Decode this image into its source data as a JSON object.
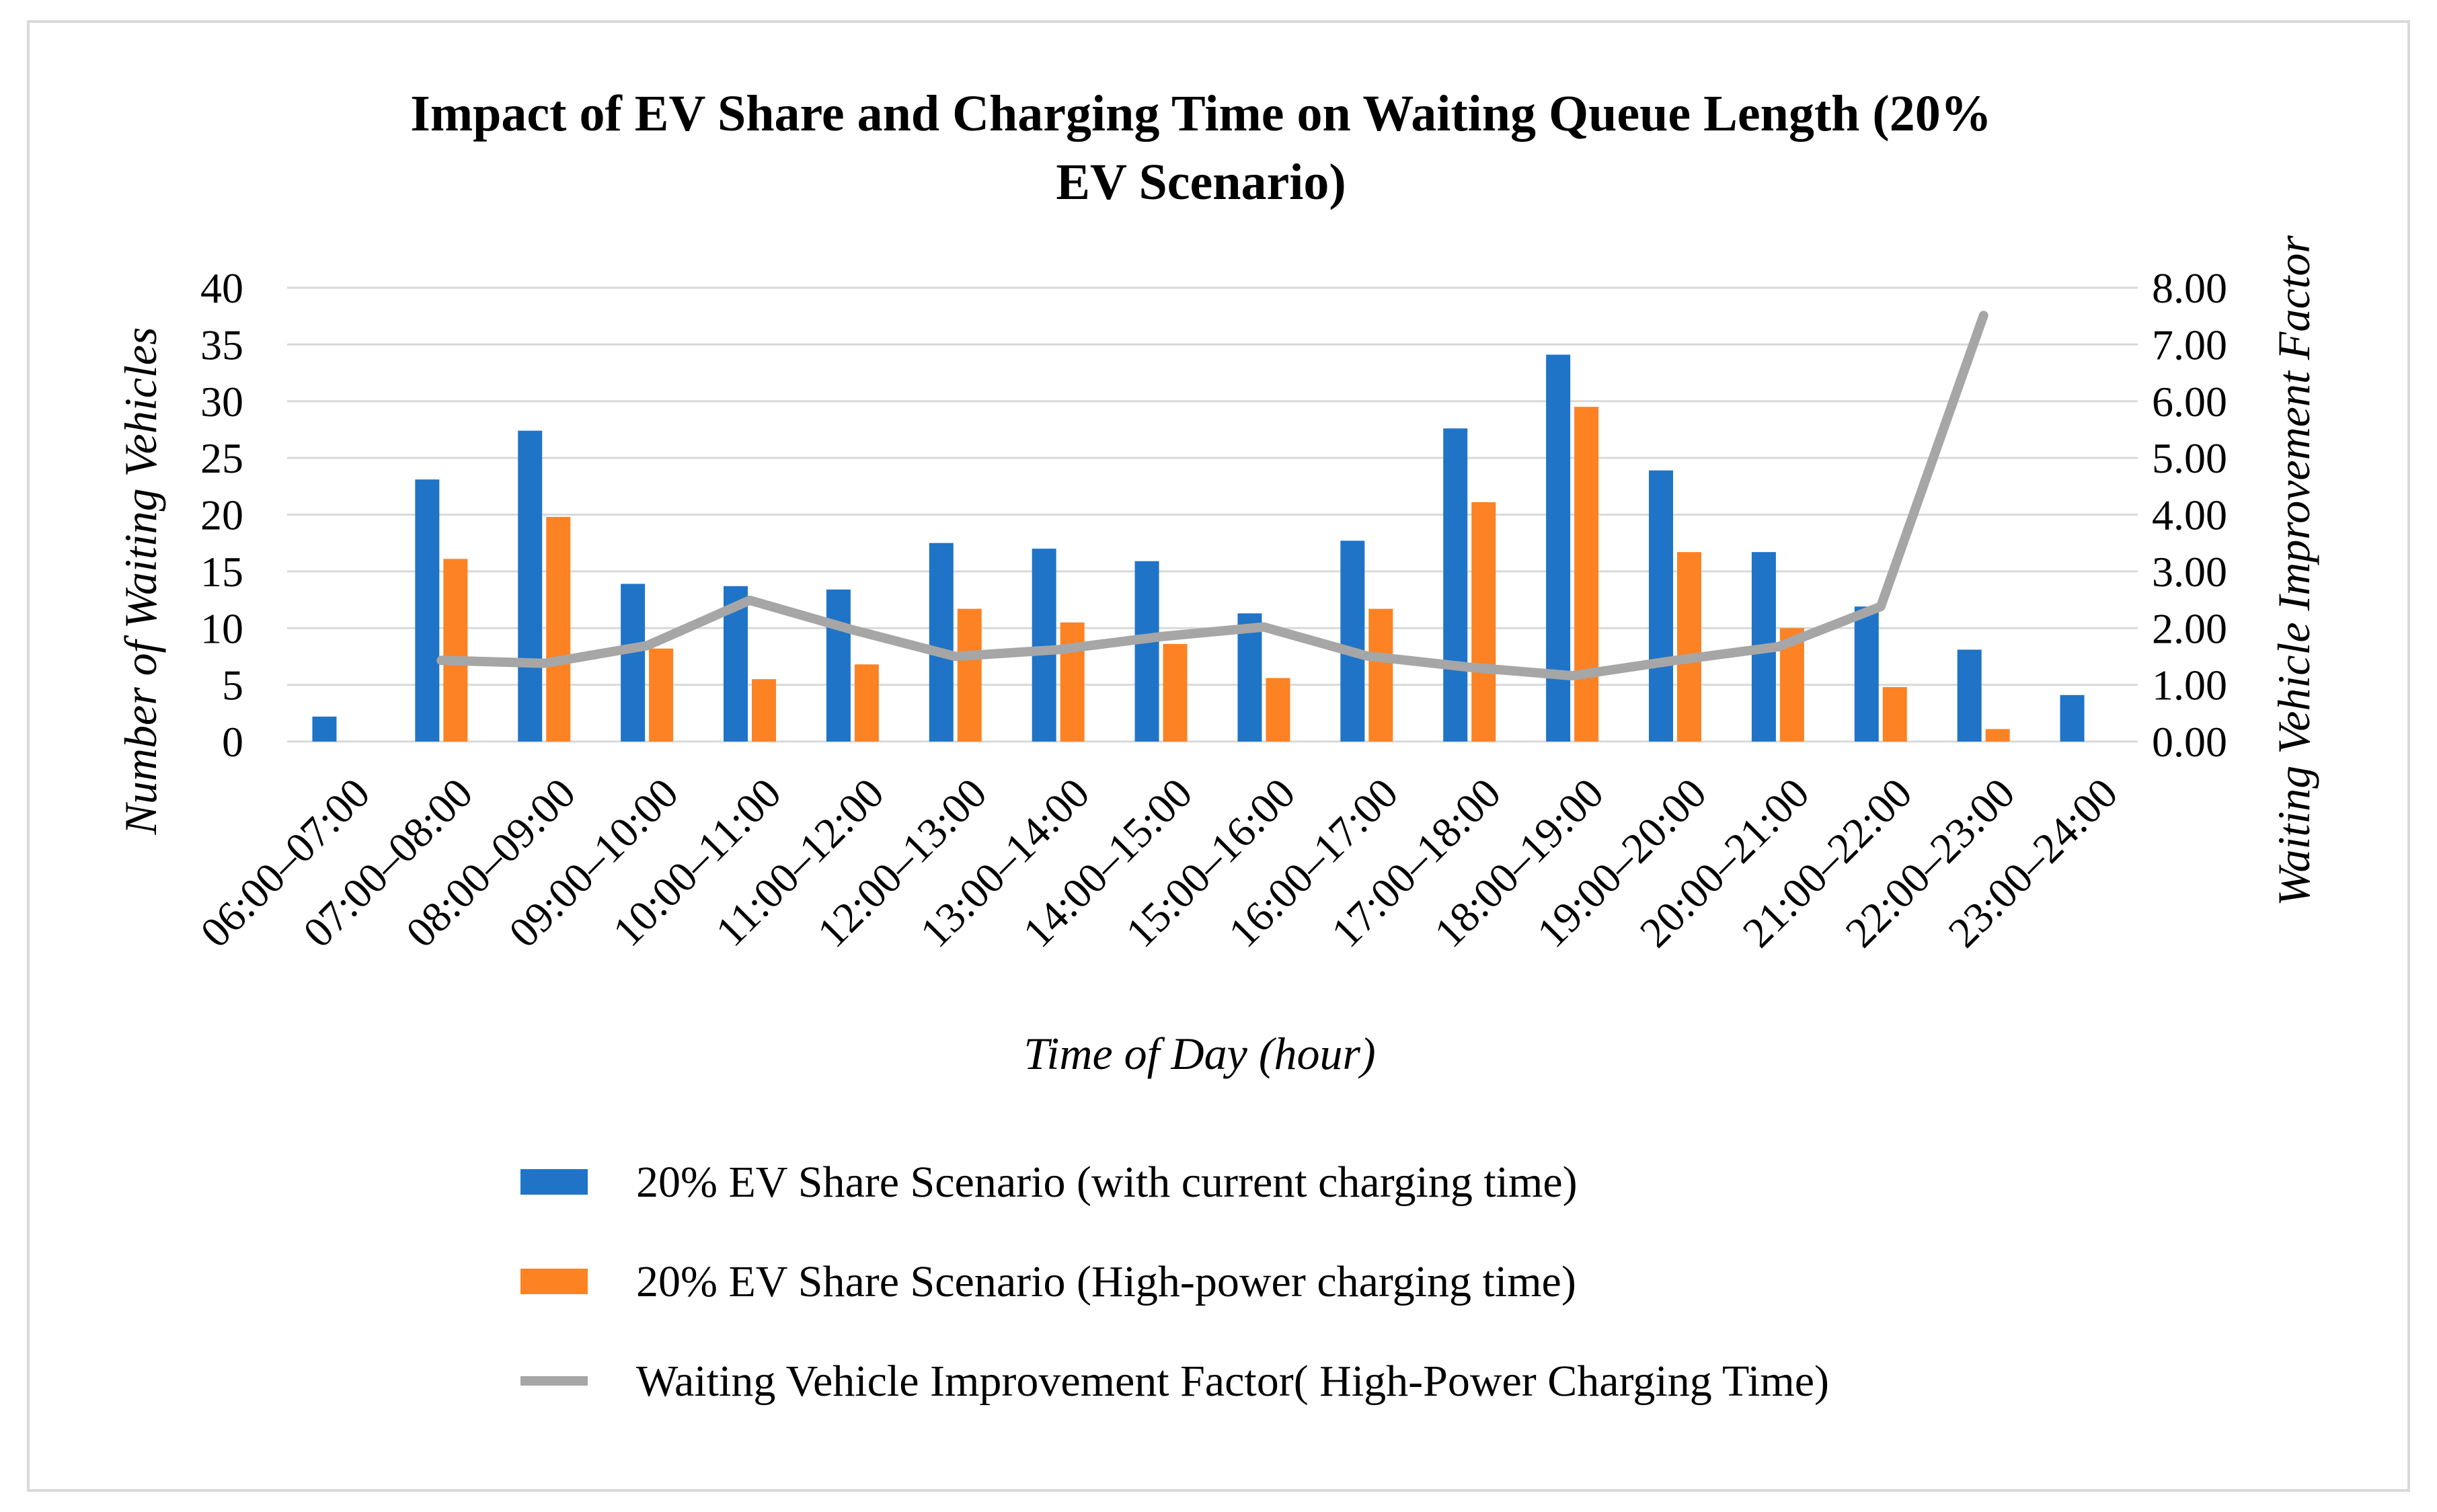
{
  "chart_data": {
    "type": "bar",
    "title": "Impact of EV Share and Charging Time on Waiting Queue Length (20% EV Scenario)",
    "title_lines": [
      "Impact of EV Share and Charging Time on Waiting Queue Length (20%",
      "EV Scenario)"
    ],
    "xlabel": "Time of Day (hour)",
    "ylabel": "Number of Waiting Vehicles",
    "y2label": "Waiting Vehicle Improvement  Factor",
    "ylim": [
      0,
      40
    ],
    "y2lim": [
      0,
      8
    ],
    "yticks": [
      "0",
      "5",
      "10",
      "15",
      "20",
      "25",
      "30",
      "35",
      "40"
    ],
    "y2ticks": [
      "0.00",
      "1.00",
      "2.00",
      "3.00",
      "4.00",
      "5.00",
      "6.00",
      "7.00",
      "8.00"
    ],
    "categories": [
      "06:00–07:00",
      "07:00–08:00",
      "08:00–09:00",
      "09:00–10:00",
      "10:00–11:00",
      "11:00–12:00",
      "12:00–13:00",
      "13:00–14:00",
      "14:00–15:00",
      "15:00–16:00",
      "16:00–17:00",
      "17:00–18:00",
      "18:00–19:00",
      "19:00–20:00",
      "20:00–21:00",
      "21:00–22:00",
      "22:00–23:00",
      "23:00–24:00"
    ],
    "series": [
      {
        "name": "20% EV Share Scenario (with current charging time)",
        "type": "bar",
        "axis": "left",
        "color": "#1f74c8",
        "values": [
          2.2,
          23.1,
          27.4,
          13.9,
          13.7,
          13.4,
          17.5,
          17.0,
          15.9,
          11.3,
          17.7,
          27.6,
          34.1,
          23.9,
          16.7,
          11.9,
          8.1,
          4.1
        ]
      },
      {
        "name": "20% EV Share Scenario  (High-power charging time)",
        "type": "bar",
        "axis": "left",
        "color": "#fd8224",
        "values": [
          0,
          16.1,
          19.8,
          8.2,
          5.5,
          6.8,
          11.7,
          10.5,
          8.6,
          5.6,
          11.7,
          21.1,
          29.5,
          16.7,
          10.0,
          4.8,
          1.1,
          0
        ]
      },
      {
        "name": "Waiting Vehicle Improvement Factor( High-Power Charging Time)",
        "type": "line",
        "axis": "right",
        "color": "#a6a6a6",
        "values": [
          null,
          1.43,
          1.38,
          1.69,
          2.49,
          1.97,
          1.5,
          1.62,
          1.85,
          2.02,
          1.51,
          1.31,
          1.16,
          1.43,
          1.67,
          2.38,
          7.51,
          null
        ]
      }
    ]
  }
}
